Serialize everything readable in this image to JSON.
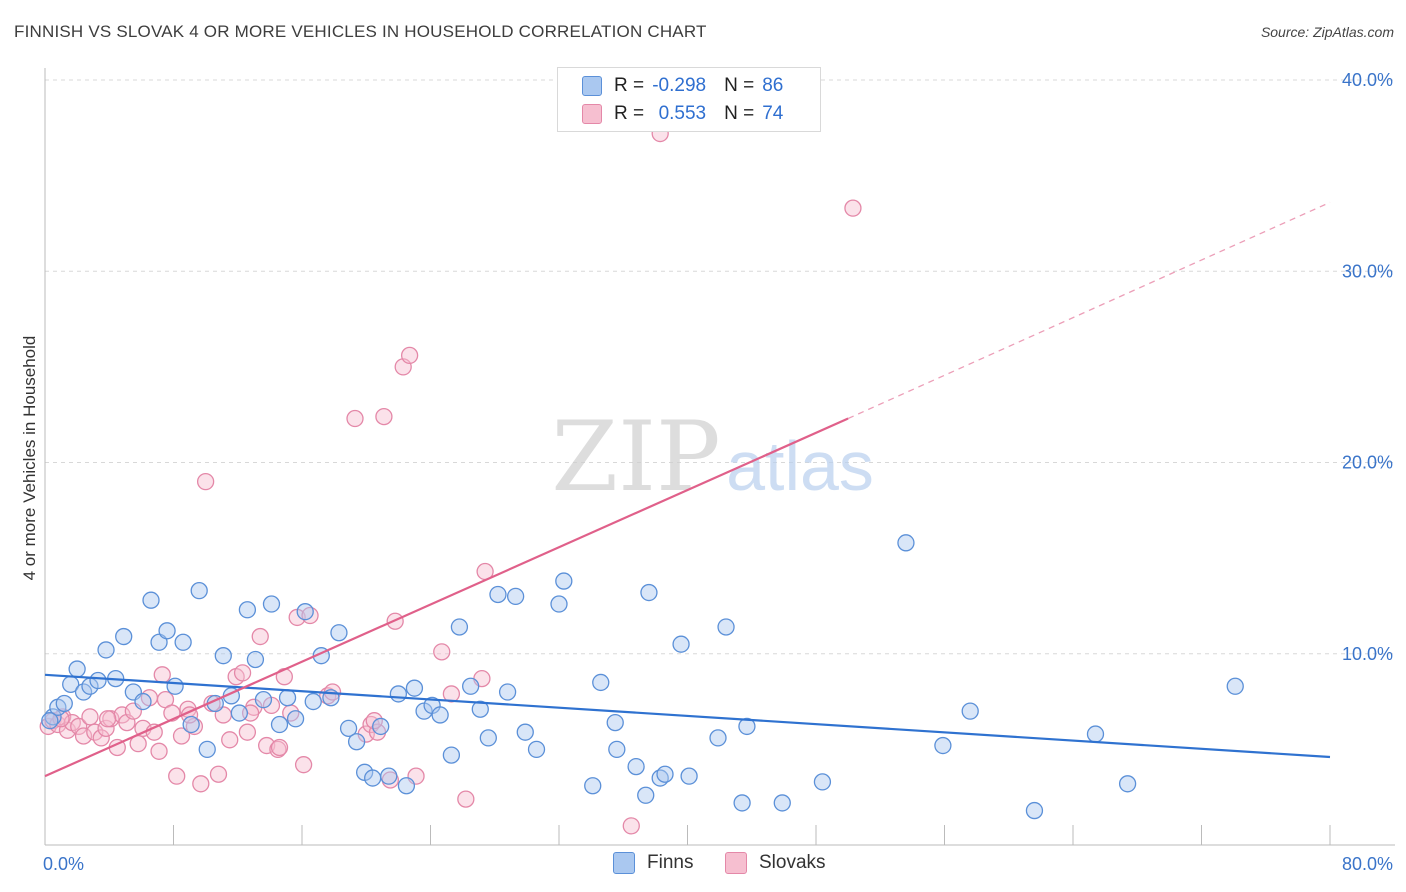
{
  "title": "FINNISH VS SLOVAK 4 OR MORE VEHICLES IN HOUSEHOLD CORRELATION CHART",
  "source": "Source: ZipAtlas.com",
  "watermark": {
    "zip": "ZIP",
    "atlas": "atlas"
  },
  "legend": {
    "rows": [
      {
        "r_label": "R =",
        "r_value": "-0.298",
        "n_label": "N =",
        "n_value": "86"
      },
      {
        "r_label": "R =",
        "r_value": "0.553",
        "n_label": "N =",
        "n_value": "74"
      }
    ]
  },
  "bottom_legend": {
    "finns": "Finns",
    "slovaks": "Slovaks"
  },
  "colors": {
    "finns_fill": "#aac8f0",
    "finns_stroke": "#5b90d8",
    "finns_line": "#2f72d0",
    "slovaks_fill": "#f6bfd0",
    "slovaks_stroke": "#e488a8",
    "slovaks_line": "#e0608a",
    "axis_text": "#3a74c9",
    "grid": "#d8d8d8"
  },
  "chart_data": {
    "type": "scatter",
    "title": "FINNISH VS SLOVAK 4 OR MORE VEHICLES IN HOUSEHOLD CORRELATION CHART",
    "xlabel": "",
    "ylabel": "4 or more Vehicles in Household",
    "xlim": [
      0,
      80
    ],
    "ylim": [
      0,
      40
    ],
    "x_tick_labels": [
      "0.0%",
      "80.0%"
    ],
    "y_tick_labels": [
      "10.0%",
      "20.0%",
      "30.0%",
      "40.0%"
    ],
    "y_ticks": [
      10,
      20,
      30,
      40
    ],
    "grid": true,
    "legend_position": "top-center",
    "series": [
      {
        "name": "Finns",
        "R": -0.298,
        "N": 86,
        "trend": {
          "x": [
            0,
            80
          ],
          "y": [
            8.9,
            4.6
          ]
        },
        "points": [
          [
            0.5,
            6.7
          ],
          [
            0.8,
            7.2
          ],
          [
            1.2,
            7.4
          ],
          [
            1.6,
            8.4
          ],
          [
            2.0,
            9.2
          ],
          [
            2.4,
            8.0
          ],
          [
            2.8,
            8.3
          ],
          [
            3.3,
            8.6
          ],
          [
            3.8,
            10.2
          ],
          [
            4.4,
            8.7
          ],
          [
            4.9,
            10.9
          ],
          [
            5.5,
            8.0
          ],
          [
            6.1,
            7.5
          ],
          [
            6.6,
            12.8
          ],
          [
            7.1,
            10.6
          ],
          [
            7.6,
            11.2
          ],
          [
            8.1,
            8.3
          ],
          [
            8.6,
            10.6
          ],
          [
            9.1,
            6.3
          ],
          [
            9.6,
            13.3
          ],
          [
            10.1,
            5.0
          ],
          [
            10.6,
            7.4
          ],
          [
            11.1,
            9.9
          ],
          [
            11.6,
            7.8
          ],
          [
            12.1,
            6.9
          ],
          [
            12.6,
            12.3
          ],
          [
            13.1,
            9.7
          ],
          [
            13.6,
            7.6
          ],
          [
            14.1,
            12.6
          ],
          [
            14.6,
            6.3
          ],
          [
            15.1,
            7.7
          ],
          [
            15.6,
            6.6
          ],
          [
            16.2,
            12.2
          ],
          [
            16.7,
            7.5
          ],
          [
            17.2,
            9.9
          ],
          [
            17.8,
            7.7
          ],
          [
            18.3,
            11.1
          ],
          [
            18.9,
            6.1
          ],
          [
            19.4,
            5.4
          ],
          [
            19.9,
            3.8
          ],
          [
            20.4,
            3.5
          ],
          [
            20.9,
            6.2
          ],
          [
            21.4,
            3.6
          ],
          [
            22.0,
            7.9
          ],
          [
            22.5,
            3.1
          ],
          [
            23.0,
            8.2
          ],
          [
            23.6,
            7.0
          ],
          [
            24.1,
            7.3
          ],
          [
            24.6,
            6.8
          ],
          [
            25.3,
            4.7
          ],
          [
            25.8,
            11.4
          ],
          [
            26.5,
            8.3
          ],
          [
            27.1,
            7.1
          ],
          [
            27.6,
            5.6
          ],
          [
            28.2,
            13.1
          ],
          [
            28.8,
            8.0
          ],
          [
            29.3,
            13.0
          ],
          [
            29.9,
            5.9
          ],
          [
            30.6,
            5.0
          ],
          [
            32.0,
            12.6
          ],
          [
            32.3,
            13.8
          ],
          [
            34.1,
            3.1
          ],
          [
            34.6,
            8.5
          ],
          [
            35.5,
            6.4
          ],
          [
            35.6,
            5.0
          ],
          [
            36.8,
            4.1
          ],
          [
            37.4,
            2.6
          ],
          [
            37.6,
            13.2
          ],
          [
            38.3,
            3.5
          ],
          [
            38.6,
            3.7
          ],
          [
            39.6,
            10.5
          ],
          [
            40.1,
            3.6
          ],
          [
            41.9,
            5.6
          ],
          [
            42.4,
            11.4
          ],
          [
            43.4,
            2.2
          ],
          [
            43.7,
            6.2
          ],
          [
            45.9,
            2.2
          ],
          [
            48.4,
            3.3
          ],
          [
            53.6,
            15.8
          ],
          [
            55.9,
            5.2
          ],
          [
            57.6,
            7.0
          ],
          [
            61.6,
            1.8
          ],
          [
            65.4,
            5.8
          ],
          [
            67.4,
            3.2
          ],
          [
            74.1,
            8.3
          ],
          [
            0.3,
            6.5
          ]
        ]
      },
      {
        "name": "Slovaks",
        "R": 0.553,
        "N": 74,
        "trend": {
          "x": [
            0,
            50
          ],
          "y": [
            3.6,
            22.3
          ]
        },
        "trend_dashed": {
          "x": [
            50,
            80
          ],
          "y": [
            22.3,
            33.6
          ]
        },
        "points": [
          [
            0.2,
            6.2
          ],
          [
            0.5,
            6.5
          ],
          [
            0.8,
            6.3
          ],
          [
            1.1,
            6.7
          ],
          [
            1.4,
            6.0
          ],
          [
            1.7,
            6.4
          ],
          [
            2.1,
            6.2
          ],
          [
            2.4,
            5.7
          ],
          [
            2.8,
            6.7
          ],
          [
            3.1,
            5.9
          ],
          [
            3.5,
            5.6
          ],
          [
            3.8,
            6.1
          ],
          [
            4.1,
            6.6
          ],
          [
            4.5,
            5.1
          ],
          [
            4.8,
            6.8
          ],
          [
            5.1,
            6.4
          ],
          [
            5.5,
            7.0
          ],
          [
            5.8,
            5.3
          ],
          [
            6.1,
            6.1
          ],
          [
            6.5,
            7.7
          ],
          [
            6.8,
            5.9
          ],
          [
            7.1,
            4.9
          ],
          [
            7.5,
            7.6
          ],
          [
            7.9,
            6.9
          ],
          [
            8.2,
            3.6
          ],
          [
            8.5,
            5.7
          ],
          [
            8.9,
            7.1
          ],
          [
            9.3,
            6.2
          ],
          [
            9.7,
            3.2
          ],
          [
            10.0,
            19.0
          ],
          [
            10.4,
            7.4
          ],
          [
            10.8,
            3.7
          ],
          [
            11.1,
            6.8
          ],
          [
            11.5,
            5.5
          ],
          [
            11.9,
            8.8
          ],
          [
            12.3,
            9.0
          ],
          [
            12.6,
            5.9
          ],
          [
            13.0,
            7.2
          ],
          [
            13.4,
            10.9
          ],
          [
            13.8,
            5.2
          ],
          [
            14.1,
            7.3
          ],
          [
            14.5,
            5.0
          ],
          [
            14.9,
            8.8
          ],
          [
            15.3,
            6.9
          ],
          [
            15.7,
            11.9
          ],
          [
            16.1,
            4.2
          ],
          [
            16.5,
            12.0
          ],
          [
            17.6,
            7.8
          ],
          [
            19.3,
            22.3
          ],
          [
            20.0,
            5.8
          ],
          [
            20.3,
            6.3
          ],
          [
            20.7,
            5.9
          ],
          [
            21.1,
            22.4
          ],
          [
            21.5,
            3.4
          ],
          [
            21.8,
            11.7
          ],
          [
            22.3,
            25.0
          ],
          [
            22.7,
            25.6
          ],
          [
            23.1,
            3.6
          ],
          [
            24.7,
            10.1
          ],
          [
            25.3,
            7.9
          ],
          [
            26.2,
            2.4
          ],
          [
            27.2,
            8.7
          ],
          [
            27.4,
            14.3
          ],
          [
            36.5,
            1.0
          ],
          [
            38.3,
            37.2
          ],
          [
            50.3,
            33.3
          ],
          [
            12.8,
            6.9
          ],
          [
            17.9,
            8.0
          ],
          [
            20.5,
            6.5
          ],
          [
            3.9,
            6.6
          ],
          [
            7.3,
            8.9
          ],
          [
            9.0,
            6.8
          ],
          [
            14.6,
            5.1
          ],
          [
            1.0,
            6.6
          ]
        ]
      }
    ]
  }
}
